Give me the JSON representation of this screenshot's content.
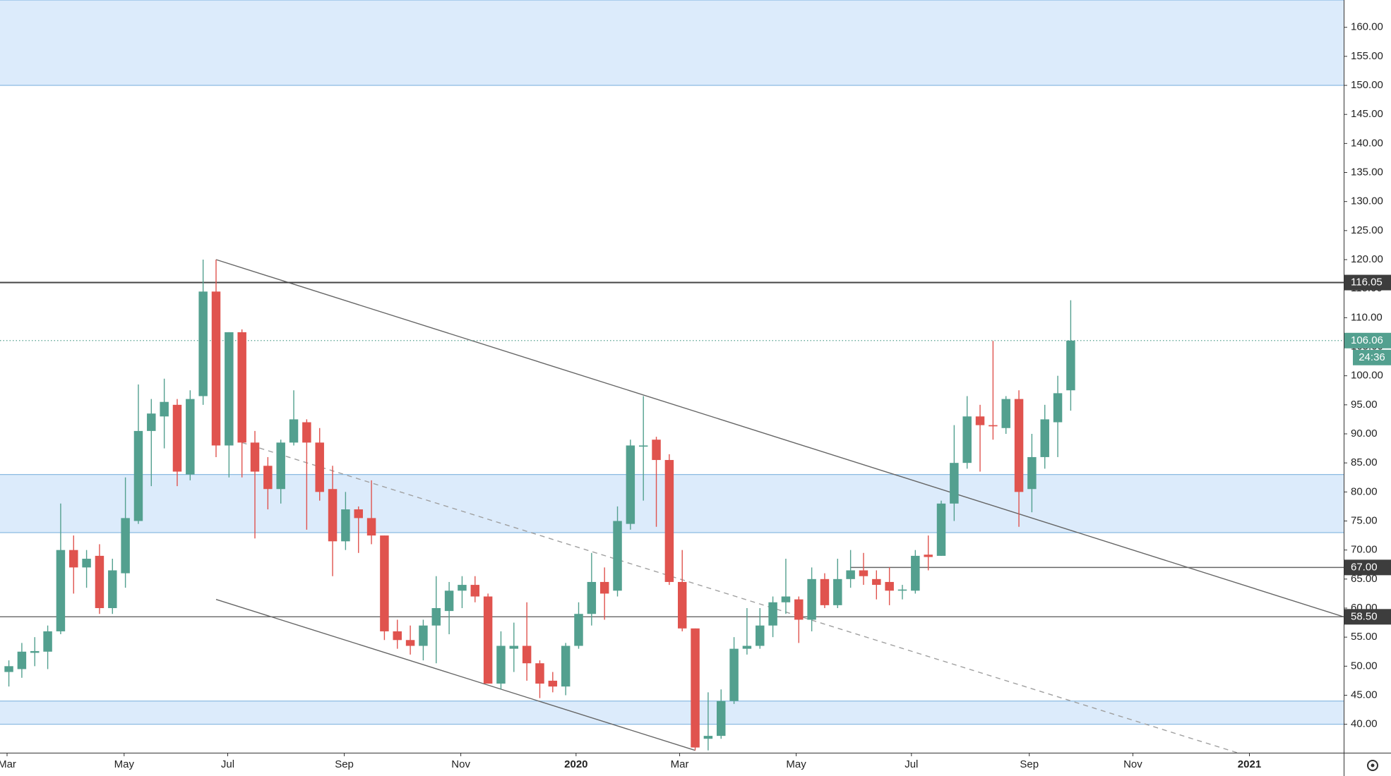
{
  "chart_data": {
    "type": "candlestick",
    "up_color": "#53a08f",
    "down_color": "#e0534e",
    "xlim": [
      -0.685,
      103.08
    ],
    "ylim": [
      35.1,
      164.7
    ],
    "xticks": [
      {
        "value": -0.14,
        "label": "Mar"
      },
      {
        "value": 8.9,
        "label": "May"
      },
      {
        "value": 16.9,
        "label": "Jul"
      },
      {
        "value": 25.9,
        "label": "Sep"
      },
      {
        "value": 34.9,
        "label": "Nov"
      },
      {
        "value": 43.8,
        "label": "2020"
      },
      {
        "value": 51.8,
        "label": "Mar"
      },
      {
        "value": 60.8,
        "label": "May"
      },
      {
        "value": 69.7,
        "label": "Jul"
      },
      {
        "value": 78.8,
        "label": "Sep"
      },
      {
        "value": 86.8,
        "label": "Nov"
      },
      {
        "value": 95.8,
        "label": "2021"
      }
    ],
    "yticks": [
      {
        "value": 40,
        "label": "40.00"
      },
      {
        "value": 45,
        "label": "45.00"
      },
      {
        "value": 50,
        "label": "50.00"
      },
      {
        "value": 55,
        "label": "55.00"
      },
      {
        "value": 60,
        "label": "60.00"
      },
      {
        "value": 65,
        "label": "65.00"
      },
      {
        "value": 70,
        "label": "70.00"
      },
      {
        "value": 75,
        "label": "75.00"
      },
      {
        "value": 80,
        "label": "80.00"
      },
      {
        "value": 85,
        "label": "85.00"
      },
      {
        "value": 90,
        "label": "90.00"
      },
      {
        "value": 95,
        "label": "95.00"
      },
      {
        "value": 100,
        "label": "100.00"
      },
      {
        "value": 105,
        "label": "105.00"
      },
      {
        "value": 110,
        "label": "110.00"
      },
      {
        "value": 115,
        "label": "115.00"
      },
      {
        "value": 120,
        "label": "120.00"
      },
      {
        "value": 125,
        "label": "125.00"
      },
      {
        "value": 130,
        "label": "130.00"
      },
      {
        "value": 135,
        "label": "135.00"
      },
      {
        "value": 140,
        "label": "140.00"
      },
      {
        "value": 145,
        "label": "145.00"
      },
      {
        "value": 150,
        "label": "150.00"
      },
      {
        "value": 155,
        "label": "155.00"
      },
      {
        "value": 160,
        "label": "160.00"
      }
    ],
    "open": [
      49,
      49.5,
      52.3,
      52.5,
      56,
      70,
      67,
      69,
      60,
      66,
      75,
      90.5,
      93,
      95,
      83,
      96.5,
      114.5,
      88,
      107.5,
      88.5,
      84.5,
      80.5,
      88.5,
      92,
      88.5,
      80.5,
      71.5,
      77,
      75.5,
      72.5,
      56,
      54.5,
      53.5,
      57,
      59.5,
      63,
      64,
      62,
      47,
      53,
      53.5,
      50.5,
      47.5,
      46.5,
      53.5,
      59,
      64.5,
      63,
      74.5,
      87.8,
      89,
      85.5,
      64.5,
      56.5,
      37.5,
      38,
      44,
      53,
      53.5,
      57,
      61,
      61.5,
      58,
      65,
      60.5,
      65,
      66.5,
      65,
      64.5,
      63,
      63,
      69.2,
      69,
      78,
      85,
      93,
      91.5,
      91,
      96,
      80.5,
      86,
      92,
      97.5
    ],
    "high": [
      51,
      54,
      55,
      57,
      78,
      72.5,
      70,
      71,
      68.5,
      82.5,
      98.5,
      96,
      99.5,
      96,
      97.5,
      120,
      120,
      107.5,
      108,
      90.5,
      86,
      89,
      97.5,
      92.5,
      91,
      84.5,
      80,
      77.5,
      82,
      72.5,
      58,
      57,
      58,
      65.5,
      64.5,
      65.5,
      65.5,
      62.5,
      56,
      57.5,
      61,
      51,
      49,
      54,
      61,
      69.5,
      67,
      77.5,
      89,
      96.5,
      89.5,
      86.5,
      70,
      56.5,
      45.5,
      46,
      55,
      60,
      60,
      62,
      68.5,
      62,
      67,
      66,
      68.5,
      70,
      69.5,
      66.5,
      67,
      64,
      70,
      72.5,
      78.5,
      91.5,
      96.5,
      95,
      106,
      96.5,
      97.5,
      90,
      95,
      100,
      113
    ],
    "low": [
      46.5,
      48,
      50,
      49.5,
      55.5,
      62.5,
      63.5,
      59,
      59,
      63.5,
      74.5,
      81,
      87.5,
      81,
      82,
      95,
      86,
      82.5,
      82.5,
      72,
      77,
      78,
      88,
      73.5,
      78.5,
      65.5,
      70,
      69.5,
      71,
      54.5,
      53,
      52,
      51,
      50.5,
      55.5,
      60,
      61,
      47,
      46,
      49,
      47.5,
      44.5,
      45.5,
      45,
      53,
      57,
      58,
      62,
      73.5,
      78.5,
      74,
      64,
      56,
      35.5,
      35.5,
      37.5,
      43.5,
      52,
      53,
      55,
      59,
      54,
      56,
      60,
      60,
      63.5,
      64,
      61.5,
      60.5,
      61.5,
      62.5,
      66.5,
      69,
      75,
      84,
      83.5,
      89,
      90,
      74,
      76.5,
      84,
      86,
      94
    ],
    "close": [
      50,
      52.5,
      52.6,
      56,
      70,
      67,
      68.5,
      60,
      66.5,
      75.5,
      90.5,
      93.5,
      95.5,
      83.5,
      96,
      114.5,
      88,
      107.5,
      88.5,
      83.5,
      80.5,
      88.5,
      92.5,
      88.5,
      80,
      71.5,
      77,
      75.5,
      72.5,
      56,
      54.5,
      53.5,
      57,
      60,
      63,
      64,
      62,
      47,
      53.5,
      53.5,
      50.5,
      47,
      46.5,
      53.5,
      59,
      64.5,
      62.5,
      75,
      88,
      88,
      85.5,
      64.5,
      56.5,
      36,
      38,
      44,
      53,
      53.5,
      57,
      61,
      62,
      58,
      65,
      60.5,
      65,
      66.5,
      65.5,
      64,
      63,
      63.2,
      69,
      68.8,
      78,
      85,
      93,
      91.5,
      91.3,
      96,
      80,
      86,
      92.5,
      97,
      106.06
    ],
    "zones": [
      {
        "from": 150,
        "to": 164.7
      },
      {
        "from": 73,
        "to": 83
      },
      {
        "from": 40,
        "to": 44
      }
    ],
    "levels": [
      {
        "value": 116.05,
        "label": "116.05",
        "start": -0.685
      },
      {
        "value": 67,
        "label": "67.00",
        "start": 65
      },
      {
        "value": 58.5,
        "label": "58.50",
        "start": -0.685
      }
    ],
    "trendlines": [
      {
        "x": [
          16,
          103.08
        ],
        "y": [
          120,
          58.5
        ],
        "style": "solid"
      },
      {
        "x": [
          16,
          53
        ],
        "y": [
          61.5,
          35.5
        ],
        "style": "solid"
      },
      {
        "x": [
          18,
          94.86
        ],
        "y": [
          88.5,
          35.1
        ],
        "style": "dashed"
      }
    ],
    "last_price": {
      "value": 106.06,
      "label": "106.06"
    },
    "countdown": "24:36"
  }
}
